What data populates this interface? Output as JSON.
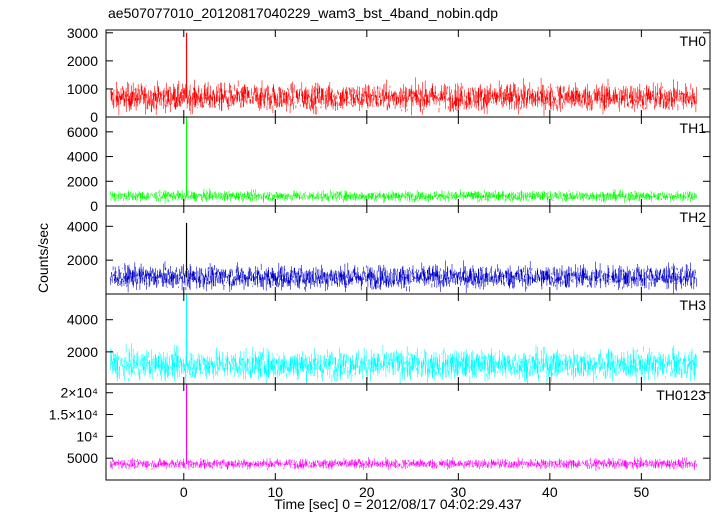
{
  "chart_data": {
    "type": "line",
    "title": "ae507077010_20120817040229_wam3_bst_4band_nobin.qdp",
    "xlabel": "Time [sec] 0 = 2012/08/17 04:02:29.437",
    "ylabel": "Counts/sec",
    "xlim": [
      -8.5,
      57.5
    ],
    "x_ticks": [
      0,
      10,
      20,
      30,
      40,
      50
    ],
    "x_tick_labels": [
      "0",
      "10",
      "20",
      "30",
      "40",
      "50"
    ],
    "data_x_range": [
      -8,
      56
    ],
    "grid": false,
    "panels": [
      {
        "name": "TH0",
        "color": "#ff0000",
        "ylim": [
          0,
          3100
        ],
        "y_ticks": [
          0,
          1000,
          2000,
          3000
        ],
        "y_tick_labels": [
          "0",
          "1000",
          "2000",
          "3000"
        ],
        "baseline": 700,
        "noise": 350,
        "spike": {
          "x": 0.3,
          "value": 3000
        }
      },
      {
        "name": "TH1",
        "color": "#00ff00",
        "ylim": [
          0,
          7200
        ],
        "y_ticks": [
          0,
          2000,
          4000,
          6000
        ],
        "y_tick_labels": [
          "0",
          "2000",
          "4000",
          "6000"
        ],
        "baseline": 800,
        "noise": 300,
        "spike": {
          "x": 0.3,
          "value": 7200
        }
      },
      {
        "name": "TH2",
        "color": "#0000cc",
        "ylim": [
          0,
          5200
        ],
        "y_ticks": [
          2000,
          4000
        ],
        "y_tick_labels": [
          "2000",
          "4000"
        ],
        "baseline": 1000,
        "noise": 500,
        "spike": {
          "x": 0.3,
          "value": 4200
        }
      },
      {
        "name": "TH3",
        "color": "#00ffff",
        "ylim": [
          0,
          5600
        ],
        "y_ticks": [
          2000,
          4000
        ],
        "y_tick_labels": [
          "2000",
          "4000"
        ],
        "baseline": 1200,
        "noise": 650,
        "spike": {
          "x": 0.3,
          "value": 5600
        }
      },
      {
        "name": "TH0123",
        "color": "#ff00ff",
        "ylim": [
          0,
          22000
        ],
        "y_ticks": [
          5000,
          10000,
          15000,
          20000
        ],
        "y_tick_labels": [
          "5000",
          "10⁴",
          "1.5×10⁴",
          "2×10⁴"
        ],
        "baseline": 3700,
        "noise": 800,
        "spike": {
          "x": 0.3,
          "value": 22000
        }
      }
    ]
  }
}
